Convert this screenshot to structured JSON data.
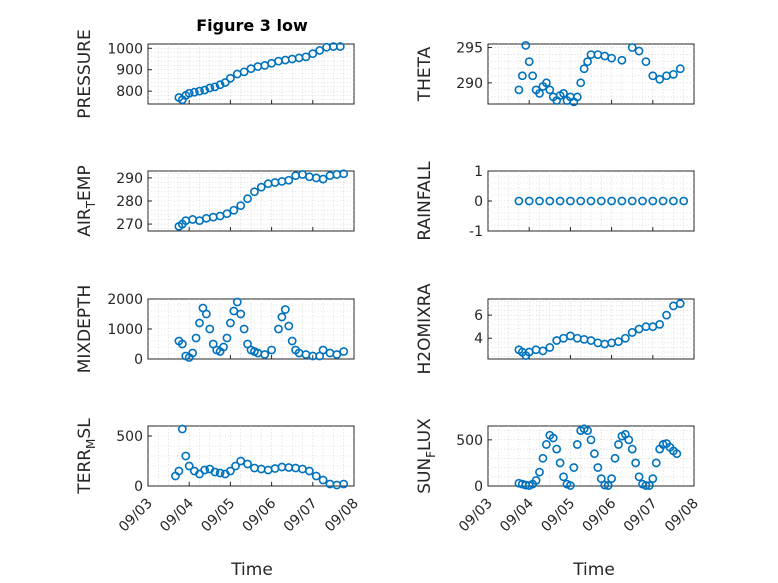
{
  "figure": {
    "title": "Figure 3 low",
    "xlabel": "Time",
    "marker_color": "#0072BD",
    "date_ticks": [
      "09/03",
      "09/04",
      "09/05",
      "09/06",
      "09/07",
      "09/08"
    ]
  },
  "chart_data": [
    {
      "type": "scatter",
      "ylabel": "PRESSURE",
      "ylim": [
        740,
        1020
      ],
      "yticks": [
        800,
        900,
        1000
      ],
      "grid": true,
      "x": [
        "09/03 18:00",
        "09/03 20:00",
        "09/03 22:00",
        "09/04 00:00",
        "09/04 03:00",
        "09/04 06:00",
        "09/04 09:00",
        "09/04 12:00",
        "09/04 15:00",
        "09/04 18:00",
        "09/04 21:00",
        "09/05 00:00",
        "09/05 04:00",
        "09/05 08:00",
        "09/05 12:00",
        "09/05 16:00",
        "09/05 20:00",
        "09/06 00:00",
        "09/06 04:00",
        "09/06 08:00",
        "09/06 12:00",
        "09/06 16:00",
        "09/06 20:00",
        "09/07 00:00",
        "09/07 04:00",
        "09/07 08:00",
        "09/07 12:00",
        "09/07 16:00"
      ],
      "y": [
        770,
        760,
        780,
        790,
        795,
        800,
        805,
        815,
        820,
        830,
        840,
        860,
        880,
        890,
        905,
        915,
        920,
        930,
        940,
        945,
        950,
        955,
        960,
        975,
        990,
        1005,
        1008,
        1008
      ]
    },
    {
      "type": "scatter",
      "ylabel": "THETA",
      "ylim": [
        287,
        295.5
      ],
      "yticks": [
        290,
        295
      ],
      "grid": true,
      "x": [
        "09/03 18:00",
        "09/03 20:00",
        "09/03 22:00",
        "09/04 00:00",
        "09/04 02:00",
        "09/04 04:00",
        "09/04 06:00",
        "09/04 08:00",
        "09/04 10:00",
        "09/04 12:00",
        "09/04 14:00",
        "09/04 16:00",
        "09/04 18:00",
        "09/04 20:00",
        "09/04 22:00",
        "09/05 00:00",
        "09/05 02:00",
        "09/05 04:00",
        "09/05 06:00",
        "09/05 08:00",
        "09/05 10:00",
        "09/05 12:00",
        "09/05 16:00",
        "09/05 20:00",
        "09/06 00:00",
        "09/06 06:00",
        "09/06 12:00",
        "09/06 16:00",
        "09/06 20:00",
        "09/07 00:00",
        "09/07 04:00",
        "09/07 08:00",
        "09/07 12:00",
        "09/07 16:00"
      ],
      "y": [
        289,
        291,
        295.3,
        293,
        291,
        289,
        288.5,
        289.5,
        290,
        289,
        288,
        287.5,
        288.2,
        288.5,
        287.5,
        288,
        287.3,
        288,
        290,
        292,
        293,
        294,
        294,
        293.8,
        293.5,
        293.2,
        295,
        294.5,
        293,
        291,
        290.5,
        291,
        291.2,
        292
      ]
    },
    {
      "type": "scatter",
      "ylabel": "AIR_TEMP",
      "ylim": [
        267,
        293
      ],
      "yticks": [
        270,
        280,
        290
      ],
      "grid": true,
      "x": [
        "09/03 18:00",
        "09/03 20:00",
        "09/03 22:00",
        "09/04 02:00",
        "09/04 06:00",
        "09/04 10:00",
        "09/04 14:00",
        "09/04 18:00",
        "09/04 22:00",
        "09/05 02:00",
        "09/05 06:00",
        "09/05 10:00",
        "09/05 14:00",
        "09/05 18:00",
        "09/05 22:00",
        "09/06 02:00",
        "09/06 06:00",
        "09/06 10:00",
        "09/06 14:00",
        "09/06 18:00",
        "09/06 22:00",
        "09/07 02:00",
        "09/07 06:00",
        "09/07 10:00",
        "09/07 14:00",
        "09/07 18:00"
      ],
      "y": [
        269,
        270,
        271.5,
        272,
        271.5,
        272.5,
        273,
        273.5,
        274.5,
        276,
        278,
        281,
        284,
        286,
        287.5,
        288,
        288.5,
        289,
        291,
        291.5,
        290.5,
        290,
        289.5,
        291,
        291.5,
        291.8
      ]
    },
    {
      "type": "scatter",
      "ylabel": "RAINFALL",
      "ylim": [
        -1,
        1
      ],
      "yticks": [
        -1,
        0,
        1
      ],
      "grid": true,
      "x": [
        "09/03 18:00",
        "09/04 00:00",
        "09/04 06:00",
        "09/04 12:00",
        "09/04 18:00",
        "09/05 00:00",
        "09/05 06:00",
        "09/05 12:00",
        "09/05 18:00",
        "09/06 00:00",
        "09/06 06:00",
        "09/06 12:00",
        "09/06 18:00",
        "09/07 00:00",
        "09/07 06:00",
        "09/07 12:00",
        "09/07 18:00"
      ],
      "y": [
        0,
        0,
        0,
        0,
        0,
        0,
        0,
        0,
        0,
        0,
        0,
        0,
        0,
        0,
        0,
        0,
        0
      ]
    },
    {
      "type": "scatter",
      "ylabel": "MIXDEPTH",
      "ylim": [
        0,
        2000
      ],
      "yticks": [
        0,
        1000,
        2000
      ],
      "grid": true,
      "x": [
        "09/03 18:00",
        "09/03 20:00",
        "09/03 22:00",
        "09/04 00:00",
        "09/04 02:00",
        "09/04 04:00",
        "09/04 06:00",
        "09/04 08:00",
        "09/04 10:00",
        "09/04 12:00",
        "09/04 14:00",
        "09/04 16:00",
        "09/04 18:00",
        "09/04 20:00",
        "09/04 22:00",
        "09/05 00:00",
        "09/05 02:00",
        "09/05 04:00",
        "09/05 06:00",
        "09/05 08:00",
        "09/05 10:00",
        "09/05 12:00",
        "09/05 14:00",
        "09/05 16:00",
        "09/05 20:00",
        "09/06 00:00",
        "09/06 04:00",
        "09/06 06:00",
        "09/06 08:00",
        "09/06 10:00",
        "09/06 12:00",
        "09/06 14:00",
        "09/06 16:00",
        "09/06 20:00",
        "09/07 00:00",
        "09/07 04:00",
        "09/07 06:00",
        "09/07 10:00",
        "09/07 14:00",
        "09/07 18:00"
      ],
      "y": [
        600,
        500,
        100,
        50,
        200,
        700,
        1200,
        1700,
        1500,
        1000,
        500,
        300,
        250,
        400,
        700,
        1200,
        1600,
        1900,
        1500,
        1000,
        500,
        300,
        250,
        200,
        150,
        300,
        1000,
        1400,
        1650,
        1100,
        600,
        300,
        200,
        150,
        100,
        100,
        300,
        200,
        150,
        250
      ]
    },
    {
      "type": "scatter",
      "ylabel": "H2OMIXRA",
      "ylim": [
        2.2,
        7.4
      ],
      "yticks": [
        4,
        6
      ],
      "grid": true,
      "x": [
        "09/03 18:00",
        "09/03 20:00",
        "09/03 22:00",
        "09/04 00:00",
        "09/04 04:00",
        "09/04 08:00",
        "09/04 12:00",
        "09/04 16:00",
        "09/04 20:00",
        "09/05 00:00",
        "09/05 04:00",
        "09/05 08:00",
        "09/05 12:00",
        "09/05 16:00",
        "09/05 20:00",
        "09/06 00:00",
        "09/06 04:00",
        "09/06 08:00",
        "09/06 12:00",
        "09/06 16:00",
        "09/06 20:00",
        "09/07 00:00",
        "09/07 04:00",
        "09/07 08:00",
        "09/07 12:00",
        "09/07 16:00"
      ],
      "y": [
        3,
        2.8,
        2.5,
        2.8,
        3,
        2.9,
        3.2,
        3.8,
        4,
        4.2,
        4,
        3.9,
        3.8,
        3.6,
        3.5,
        3.6,
        3.7,
        4,
        4.5,
        4.8,
        5,
        5,
        5.2,
        6,
        6.8,
        7
      ]
    },
    {
      "type": "scatter",
      "ylabel": "TERR_MSL",
      "ylim": [
        0,
        600
      ],
      "yticks": [
        0,
        500
      ],
      "grid": true,
      "x": [
        "09/03 16:00",
        "09/03 18:00",
        "09/03 20:00",
        "09/03 22:00",
        "09/04 00:00",
        "09/04 03:00",
        "09/04 06:00",
        "09/04 09:00",
        "09/04 12:00",
        "09/04 15:00",
        "09/04 18:00",
        "09/04 21:00",
        "09/05 00:00",
        "09/05 03:00",
        "09/05 06:00",
        "09/05 10:00",
        "09/05 14:00",
        "09/05 18:00",
        "09/05 22:00",
        "09/06 02:00",
        "09/06 06:00",
        "09/06 10:00",
        "09/06 14:00",
        "09/06 18:00",
        "09/06 22:00",
        "09/07 02:00",
        "09/07 06:00",
        "09/07 10:00",
        "09/07 14:00",
        "09/07 18:00"
      ],
      "y": [
        100,
        150,
        570,
        300,
        200,
        150,
        120,
        160,
        170,
        140,
        130,
        120,
        150,
        200,
        250,
        220,
        180,
        170,
        160,
        175,
        190,
        185,
        180,
        170,
        150,
        100,
        60,
        20,
        10,
        20
      ]
    },
    {
      "type": "scatter",
      "ylabel": "SUN_FLUX",
      "ylim": [
        0,
        650
      ],
      "yticks": [
        0,
        500
      ],
      "grid": true,
      "x": [
        "09/03 18:00",
        "09/03 20:00",
        "09/03 22:00",
        "09/04 00:00",
        "09/04 02:00",
        "09/04 04:00",
        "09/04 06:00",
        "09/04 08:00",
        "09/04 10:00",
        "09/04 12:00",
        "09/04 14:00",
        "09/04 16:00",
        "09/04 18:00",
        "09/04 20:00",
        "09/04 22:00",
        "09/05 00:00",
        "09/05 02:00",
        "09/05 04:00",
        "09/05 06:00",
        "09/05 08:00",
        "09/05 10:00",
        "09/05 12:00",
        "09/05 14:00",
        "09/05 16:00",
        "09/05 18:00",
        "09/05 20:00",
        "09/05 22:00",
        "09/06 00:00",
        "09/06 02:00",
        "09/06 04:00",
        "09/06 06:00",
        "09/06 08:00",
        "09/06 10:00",
        "09/06 12:00",
        "09/06 14:00",
        "09/06 16:00",
        "09/06 18:00",
        "09/06 20:00",
        "09/06 22:00",
        "09/07 00:00",
        "09/07 02:00",
        "09/07 04:00",
        "09/07 06:00",
        "09/07 08:00",
        "09/07 10:00",
        "09/07 12:00",
        "09/07 14:00"
      ],
      "y": [
        30,
        20,
        10,
        5,
        20,
        60,
        150,
        300,
        450,
        550,
        520,
        400,
        250,
        100,
        20,
        5,
        200,
        450,
        600,
        620,
        600,
        500,
        350,
        200,
        80,
        10,
        5,
        80,
        300,
        450,
        540,
        560,
        500,
        400,
        250,
        100,
        20,
        5,
        5,
        80,
        250,
        400,
        450,
        460,
        420,
        380,
        350
      ]
    }
  ]
}
